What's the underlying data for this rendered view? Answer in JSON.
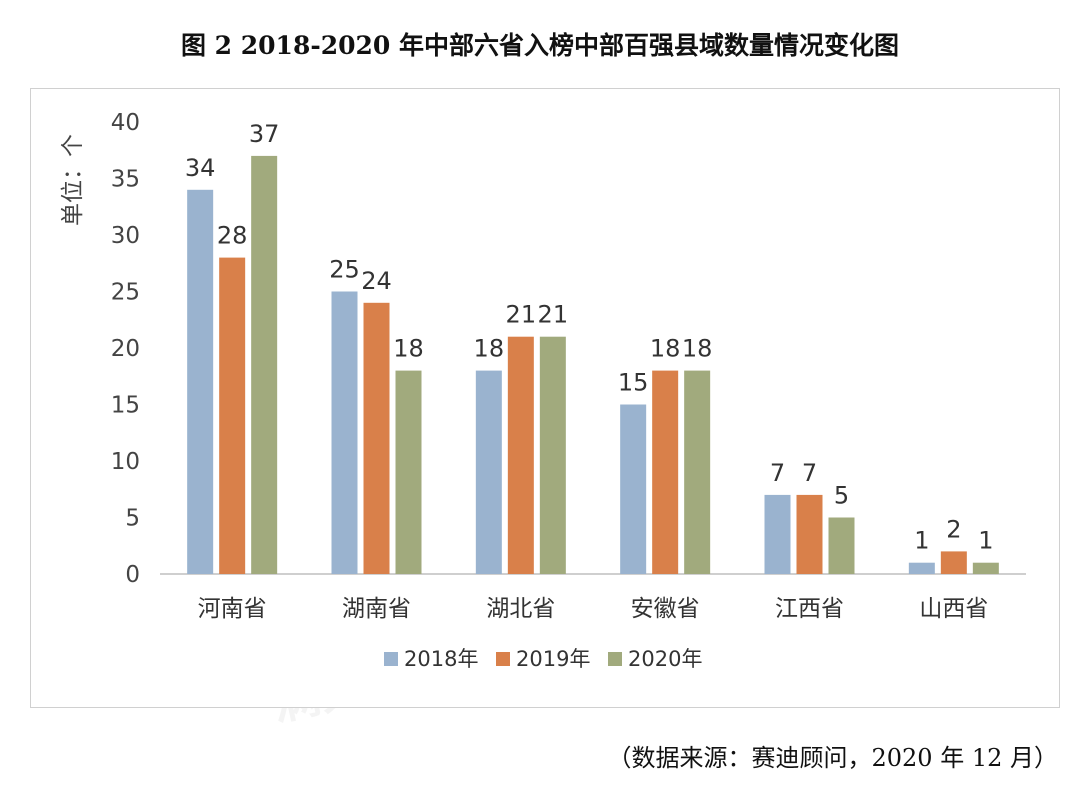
{
  "title": "图 2 2018-2020 年中部六省入榜中部百强县域数量情况变化图",
  "source": "（数据来源：赛迪顾问，2020 年 12 月）",
  "colors": {
    "s2018": "#9ab3cf",
    "s2019": "#d9804a",
    "s2020": "#a1aa7d"
  },
  "chart_data": {
    "type": "bar",
    "ylabel": "单位：个",
    "ylim": [
      0,
      40
    ],
    "yticks": [
      0,
      5,
      10,
      15,
      20,
      25,
      30,
      35,
      40
    ],
    "categories": [
      "河南省",
      "湖南省",
      "湖北省",
      "安徽省",
      "江西省",
      "山西省"
    ],
    "series": [
      {
        "name": "2018年",
        "values": [
          34,
          25,
          18,
          15,
          7,
          1
        ]
      },
      {
        "name": "2019年",
        "values": [
          28,
          24,
          21,
          18,
          7,
          2
        ]
      },
      {
        "name": "2020年",
        "values": [
          37,
          18,
          21,
          18,
          5,
          1
        ]
      }
    ],
    "grid": false,
    "legend": "bottom-center"
  }
}
